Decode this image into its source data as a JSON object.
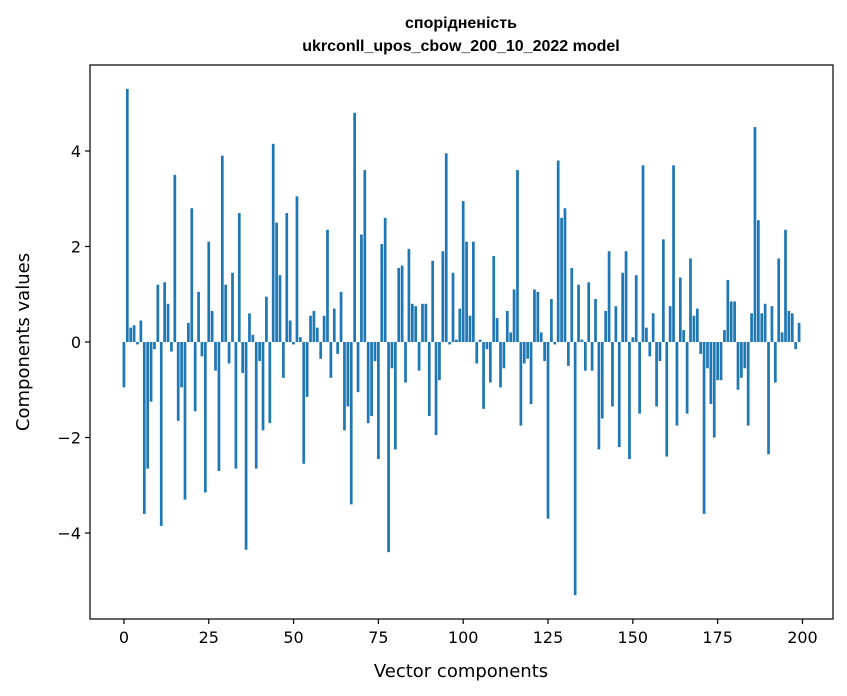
{
  "chart_data": {
    "type": "bar",
    "title_lines": [
      "спорідненість",
      "ukrconll_upos_cbow_200_10_2022 model"
    ],
    "xlabel": "Vector components",
    "ylabel": "Components values",
    "xlim": [
      -10,
      209
    ],
    "ylim": [
      -5.8,
      5.8
    ],
    "xticks": [
      0,
      25,
      50,
      75,
      100,
      125,
      150,
      175,
      200
    ],
    "xtick_labels": [
      "0",
      "25",
      "50",
      "75",
      "100",
      "125",
      "150",
      "175",
      "200"
    ],
    "yticks": [
      -4,
      -2,
      0,
      2,
      4
    ],
    "ytick_labels": [
      "−4",
      "−2",
      "0",
      "2",
      "4"
    ],
    "grid": false,
    "bar_color": "#1f77b4",
    "values": [
      -0.95,
      5.3,
      0.3,
      0.35,
      -0.05,
      0.45,
      -3.6,
      -2.65,
      -1.25,
      -0.15,
      1.2,
      -3.85,
      1.25,
      0.8,
      -0.2,
      3.5,
      -1.65,
      -0.95,
      -3.3,
      0.4,
      2.8,
      -1.45,
      1.05,
      -0.3,
      -3.15,
      2.1,
      0.65,
      -0.6,
      -2.7,
      3.9,
      1.2,
      -0.45,
      1.45,
      -2.65,
      2.7,
      -0.65,
      -4.35,
      0.6,
      0.15,
      -2.65,
      -0.4,
      -1.85,
      0.95,
      -1.7,
      4.15,
      2.5,
      1.4,
      -0.75,
      2.7,
      0.45,
      -0.05,
      3.05,
      0.1,
      -2.55,
      -1.15,
      0.55,
      0.65,
      0.3,
      -0.35,
      0.55,
      2.35,
      -0.75,
      0.7,
      -0.25,
      1.05,
      -1.85,
      -1.35,
      -3.4,
      4.8,
      -1.05,
      2.25,
      3.6,
      -1.7,
      -1.55,
      -0.4,
      -2.45,
      2.05,
      2.6,
      -4.4,
      -0.55,
      -2.25,
      1.55,
      1.6,
      -0.85,
      1.95,
      0.8,
      0.75,
      -0.6,
      0.8,
      0.8,
      -1.55,
      1.7,
      -1.95,
      -0.8,
      1.9,
      3.95,
      -0.05,
      1.45,
      0.05,
      0.7,
      2.95,
      2.1,
      0.55,
      2.1,
      -0.45,
      0.05,
      -1.4,
      -0.15,
      -0.85,
      1.8,
      0.5,
      -0.95,
      -0.55,
      0.65,
      0.2,
      1.1,
      3.6,
      -1.75,
      -0.45,
      -0.35,
      -1.3,
      1.1,
      1.05,
      0.2,
      -0.4,
      -3.7,
      0.9,
      -0.05,
      3.8,
      2.6,
      2.8,
      -0.5,
      1.55,
      -5.3,
      1.2,
      0.05,
      -0.6,
      1.25,
      -0.6,
      0.9,
      -2.25,
      -1.6,
      0.65,
      1.9,
      -1.35,
      0.75,
      -2.2,
      1.45,
      1.9,
      -2.45,
      0.1,
      1.4,
      -1.5,
      3.7,
      0.3,
      -0.3,
      0.6,
      -1.35,
      -0.4,
      2.15,
      -2.4,
      0.75,
      3.7,
      -1.75,
      1.35,
      0.25,
      -1.5,
      1.75,
      0.55,
      0.7,
      -0.25,
      -3.6,
      -0.55,
      -1.3,
      -2.0,
      -0.8,
      -0.8,
      0.25,
      1.3,
      0.85,
      0.85,
      -1.0,
      -0.75,
      -0.55,
      -1.75,
      0.6,
      4.5,
      2.55,
      0.6,
      0.8,
      -2.35,
      0.75,
      -0.85,
      1.75,
      0.2,
      2.35,
      0.65,
      0.6,
      -0.15,
      0.4
    ]
  }
}
